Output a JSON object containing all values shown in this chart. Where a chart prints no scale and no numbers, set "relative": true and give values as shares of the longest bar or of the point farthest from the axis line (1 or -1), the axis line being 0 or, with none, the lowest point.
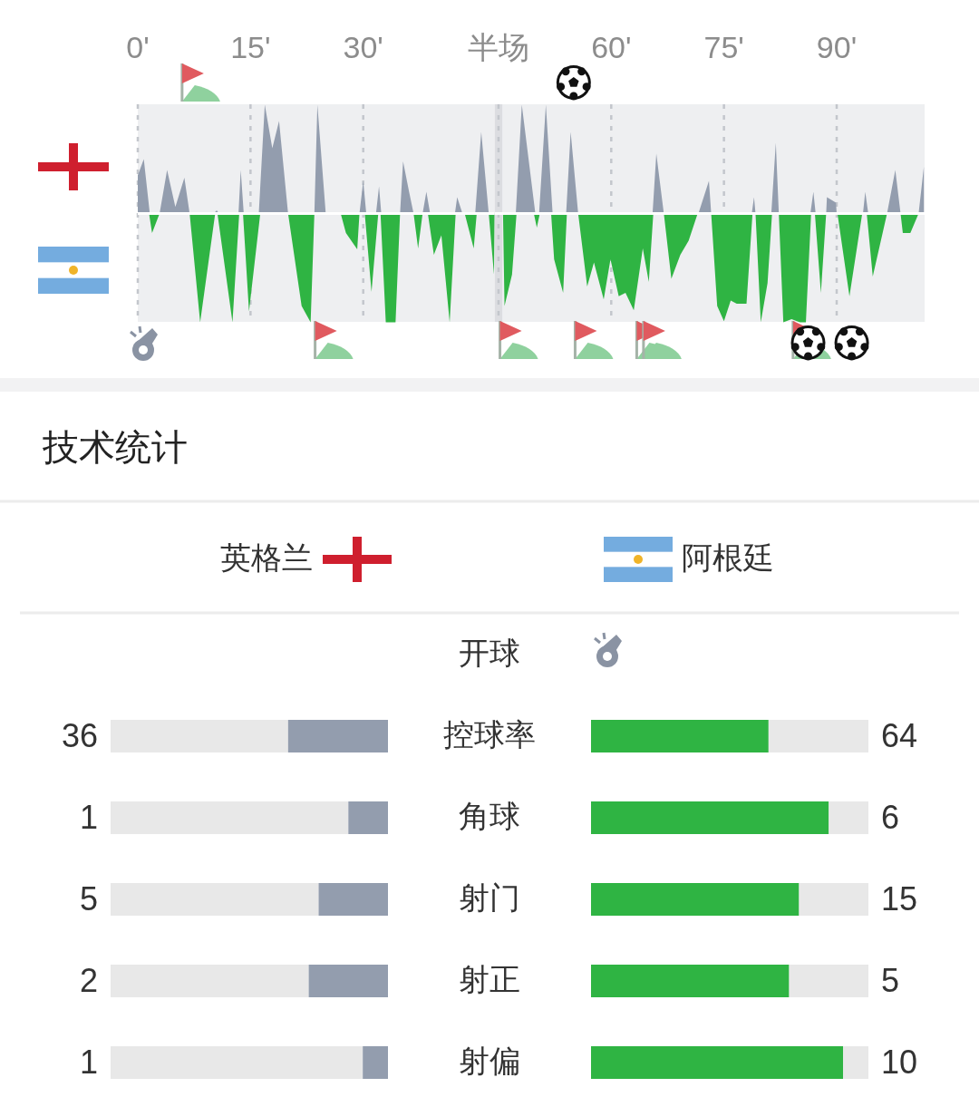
{
  "chart_data": [
    {
      "type": "area",
      "relative": true,
      "xlim": [
        0,
        47.5
      ],
      "xticks": [
        {
          "value": 0,
          "label": "0'"
        },
        {
          "value": 15,
          "label": "15'"
        },
        {
          "value": 30,
          "label": "30'"
        }
      ],
      "grid": "x",
      "series": [
        {
          "color": "#939dae",
          "x": [
            0,
            0.8,
            1.6,
            2.9,
            3.9,
            5.0,
            6.2,
            6.9,
            10.1,
            10.5,
            10.8,
            13.4,
            13.7,
            14.1,
            16.1,
            16.9,
            17.9,
            18.8,
            20.0,
            23.5,
            23.9,
            25.0,
            27.0,
            27.2,
            29.5,
            30.0,
            30.4,
            31.7,
            32.1,
            32.4,
            34.9,
            35.3,
            36.1,
            36.7,
            37.9,
            38.4,
            38.9,
            42.2,
            42.5,
            43.2,
            44.9,
            45.7,
            46.7
          ],
          "values": [
            0.35,
            0.5,
            0,
            0,
            0.4,
            0.06,
            0.33,
            0,
            0,
            0.03,
            0,
            0,
            0.4,
            0,
            0,
            1.0,
            0.6,
            0.85,
            0,
            0,
            1.0,
            0.01,
            0.01,
            0,
            0,
            0.3,
            0,
            0,
            0.25,
            0,
            0,
            0.48,
            0.2,
            0,
            0,
            0.2,
            0,
            0,
            0.15,
            0,
            0,
            0.75,
            0
          ]
        },
        {
          "color": "#2fb443",
          "x": [
            0,
            1.5,
            1.9,
            2.9,
            6.9,
            8.3,
            10.3,
            10.6,
            12.6,
            13.5,
            14.0,
            14.8,
            16.3,
            20.0,
            21.8,
            23.0,
            23.5,
            27.0,
            27.7,
            29.2,
            29.5,
            30.2,
            31.1,
            32.0,
            32.3,
            33.0,
            34.3,
            34.9,
            36.7,
            37.3,
            37.9,
            38.6,
            39.4,
            40.4,
            41.5,
            42.3,
            43.5,
            44.7,
            45.1,
            46.7,
            47.4,
            47.5
          ],
          "values": [
            0,
            0,
            -0.18,
            0,
            0,
            -1.0,
            0,
            0,
            -1.0,
            0,
            0,
            -0.9,
            0,
            0,
            -0.85,
            -1.0,
            0,
            0,
            -0.18,
            -0.33,
            0,
            0,
            -0.72,
            0,
            0,
            -1.0,
            -1.0,
            0,
            0,
            -0.32,
            0,
            0,
            -0.38,
            -0.2,
            -1.0,
            0,
            0,
            -0.32,
            0,
            0,
            -0.56,
            0
          ]
        }
      ]
    },
    {
      "type": "area",
      "relative": true,
      "xlim": [
        44.5,
        101.7
      ],
      "xticks": [
        {
          "value": 45,
          "label": "半场"
        },
        {
          "value": 60,
          "label": "60'"
        },
        {
          "value": 75,
          "label": "75'"
        },
        {
          "value": 90,
          "label": "90'"
        }
      ],
      "grid": "x",
      "bands": [
        {
          "axis": "x",
          "from": 44.5,
          "to": 45.5,
          "color": "#dcdde1"
        }
      ],
      "series": [
        {
          "color": "#939dae",
          "x": [
            47.3,
            48.1,
            49.9,
            50.4,
            51.3,
            52.2,
            54.0,
            54.6,
            55.6,
            65.5,
            66.0,
            67.0,
            71.6,
            73.0,
            73.3,
            78.7,
            79.0,
            79.2,
            81.3,
            81.9,
            82.3,
            86.5,
            86.9,
            87.2,
            88.6,
            88.7,
            89.9,
            90.0,
            93.5,
            93.8,
            94.2,
            96.7,
            97.8,
            98.5,
            100.9,
            101.6
          ],
          "values": [
            0,
            1.0,
            0,
            0,
            1.0,
            0,
            0,
            0.75,
            0,
            0,
            0.55,
            0,
            0,
            0.3,
            0,
            0,
            0.15,
            0,
            0,
            0.65,
            0,
            0,
            0.2,
            0,
            0,
            0.15,
            0.1,
            0,
            0,
            0.2,
            0,
            0,
            0.4,
            0,
            0,
            0.43
          ]
        },
        {
          "color": "#2fb443",
          "x": [
            45.6,
            45.8,
            46.8,
            47.4,
            49.7,
            50.1,
            50.5,
            52.0,
            52.4,
            53.6,
            54.1,
            55.6,
            56.8,
            57.7,
            59.0,
            59.9,
            61.0,
            61.9,
            63.0,
            64.2,
            65.0,
            65.6,
            67.0,
            68.0,
            69.2,
            70.3,
            71.5,
            73.3,
            74.1,
            75.0,
            75.9,
            76.7,
            78.0,
            78.8,
            79.2,
            79.9,
            80.8,
            81.4,
            82.3,
            82.9,
            84.0,
            85.1,
            85.9,
            86.6,
            87.1,
            87.9,
            88.6,
            90.1,
            91.7,
            93.4,
            94.0,
            94.8,
            96.7,
            98.5,
            98.8,
            99.8,
            100.9
          ],
          "values": [
            0,
            -0.85,
            -0.56,
            0,
            0,
            -0.13,
            0,
            0,
            -0.42,
            -0.73,
            0,
            0,
            -0.67,
            -0.45,
            -0.79,
            -0.42,
            -0.76,
            -0.73,
            -0.89,
            -0.32,
            -0.63,
            0,
            0,
            -0.6,
            -0.38,
            -0.25,
            0,
            0,
            -0.85,
            -0.99,
            -0.8,
            -0.83,
            -0.83,
            0,
            0,
            -1.0,
            -0.64,
            0,
            0,
            -1.0,
            -0.97,
            -1.0,
            -1.0,
            0,
            0,
            -0.73,
            0,
            0,
            -0.76,
            0,
            0,
            -0.58,
            0,
            0,
            -0.18,
            -0.18,
            0
          ]
        }
      ]
    },
    {
      "type": "other",
      "title": "技术统计",
      "categories": [
        "开球",
        "控球率",
        "角球",
        "射门",
        "射正",
        "射偏"
      ],
      "series": [
        {
          "color": "#939dae",
          "values": [
            null,
            36,
            1,
            5,
            2,
            1
          ]
        },
        {
          "color": "#2fb443",
          "values": [
            null,
            64,
            6,
            15,
            5,
            10
          ]
        }
      ],
      "annotations": [
        "英格兰",
        "阿根廷"
      ],
      "data_labels": true
    }
  ]
}
